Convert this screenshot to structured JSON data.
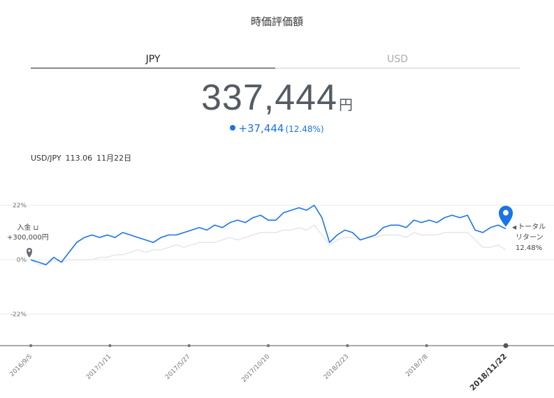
{
  "title": "時価評価額",
  "tabs": [
    {
      "label": "JPY",
      "active": true
    },
    {
      "label": "USD",
      "active": false
    }
  ],
  "valuation": {
    "amount": "337,444",
    "unit": "円"
  },
  "change": {
    "amount": "+37,444",
    "percent": "(12.48%)"
  },
  "fx": {
    "pair": "USD/JPY",
    "rate": "113.06",
    "date": "11月22日"
  },
  "deposit": {
    "label": "入金",
    "amount": "+300,000円"
  },
  "total_return": {
    "line1": "トータル",
    "line2": "リターン",
    "value": "12.48%"
  },
  "colors": {
    "accent": "#1a73e8",
    "benchmark": "#e3e6ec",
    "axis": "#666a70"
  },
  "chart_data": {
    "type": "line",
    "x_ticks": [
      "2016/9/5",
      "2017/1/11",
      "2017/5/27",
      "2017/10/10",
      "2018/2/23",
      "2018/7/8",
      "2018/11/22"
    ],
    "y_ticks": [
      "22%",
      "0%",
      "-22%"
    ],
    "ylim": [
      -33,
      22
    ],
    "series": [
      {
        "values": [
          0,
          -1,
          -2,
          1,
          -1,
          3,
          7,
          9,
          10,
          9,
          10,
          9,
          11,
          10,
          9,
          8,
          7,
          9,
          10,
          10,
          11,
          12,
          13,
          12,
          14,
          13,
          15,
          16,
          15,
          17,
          18,
          16,
          16,
          19,
          20,
          21,
          20,
          22,
          17,
          7,
          10,
          12,
          11,
          8,
          9,
          10,
          13,
          14,
          14,
          13,
          16,
          15,
          16,
          15,
          17,
          18,
          17,
          18,
          12,
          11,
          13,
          14,
          12.5
        ]
      },
      {
        "values": [
          0,
          -2,
          -2,
          0,
          -1,
          0,
          0,
          0,
          0,
          1,
          1,
          2,
          2,
          3,
          4,
          3,
          4,
          4,
          5,
          6,
          5,
          6,
          7,
          7,
          7,
          8,
          9,
          8,
          9,
          10,
          11,
          11,
          11,
          12,
          12,
          13,
          12,
          14,
          10,
          6,
          8,
          9,
          9,
          8,
          9,
          9,
          10,
          10,
          10,
          9,
          11,
          10,
          10,
          10,
          11,
          11,
          11,
          11,
          8,
          5,
          5,
          6,
          4
        ]
      }
    ]
  }
}
